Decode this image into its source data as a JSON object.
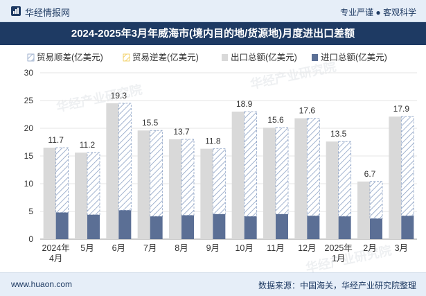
{
  "header": {
    "brand": "华经情报网",
    "slogan": "专业严谨 ● 客观科学"
  },
  "title": "2024-2025年3月年威海市(境内目的地/货源地)月度进出口差额",
  "footer": {
    "url": "www.huaon.com",
    "source": "数据来源：中国海关，华经产业研究院整理"
  },
  "watermarks": [
    "华经产业研究院",
    "华经产业研究院",
    "华经产业研究院"
  ],
  "colors": {
    "export": "#d9d9d9",
    "import": "#5b6f95",
    "surplus_stroke": "#8aa0c4",
    "deficit_stroke": "#f0c84a",
    "axis_text": "#333333",
    "grid": "#e6e6e6"
  },
  "chart_data": {
    "type": "bar",
    "categories": [
      [
        "2024年",
        "4月"
      ],
      [
        "5月"
      ],
      [
        "6月"
      ],
      [
        "7月"
      ],
      [
        "8月"
      ],
      [
        "9月"
      ],
      [
        "10月"
      ],
      [
        "11月"
      ],
      [
        "12月"
      ],
      [
        "2025年",
        "1月"
      ],
      [
        "2月"
      ],
      [
        "3月"
      ]
    ],
    "legend": [
      "贸易顺差(亿美元)",
      "贸易逆差(亿美元)",
      "出口总额(亿美元)",
      "进口总额(亿美元)"
    ],
    "series": [
      {
        "name": "出口总额(亿美元)",
        "values": [
          16.5,
          15.6,
          24.5,
          19.6,
          18.0,
          16.3,
          23.0,
          20.1,
          21.8,
          17.6,
          10.4,
          22.1
        ]
      },
      {
        "name": "进口总额(亿美元)",
        "values": [
          4.8,
          4.4,
          5.2,
          4.1,
          4.3,
          4.5,
          4.1,
          4.5,
          4.2,
          4.1,
          3.7,
          4.2
        ]
      },
      {
        "name": "贸易顺差(亿美元)",
        "values": [
          11.7,
          11.2,
          19.3,
          15.5,
          13.7,
          11.8,
          18.9,
          15.6,
          17.6,
          13.5,
          6.7,
          17.9
        ]
      },
      {
        "name": "贸易逆差(亿美元)",
        "values": [
          0,
          0,
          0,
          0,
          0,
          0,
          0,
          0,
          0,
          0,
          0,
          0
        ]
      }
    ],
    "data_labels": [
      "11.7",
      "11.2",
      "19.3",
      "15.5",
      "13.7",
      "11.8",
      "18.9",
      "15.6",
      "17.6",
      "13.5",
      "6.7",
      "17.9"
    ],
    "ylim": [
      0,
      30
    ],
    "yticks": [
      0,
      5,
      10,
      15,
      20,
      25,
      30
    ],
    "xlabel": "",
    "ylabel": ""
  }
}
